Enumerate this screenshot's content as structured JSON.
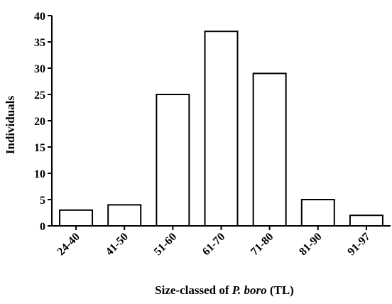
{
  "chart_data": {
    "type": "bar",
    "categories": [
      "24-40",
      "41-50",
      "51-60",
      "61-70",
      "71-80",
      "81-90",
      "91-97"
    ],
    "values": [
      3,
      4,
      25,
      37,
      29,
      5,
      2
    ],
    "ylabel": "Individuals",
    "xlabel_prefix": "Size-classed of ",
    "xlabel_species": "P. boro",
    "xlabel_suffix": " (TL)",
    "ylim": [
      0,
      40
    ],
    "yticks": [
      0,
      5,
      10,
      15,
      20,
      25,
      30,
      35,
      40
    ],
    "grid": false,
    "bar_fill": "#ffffff",
    "bar_stroke": "#000000"
  }
}
